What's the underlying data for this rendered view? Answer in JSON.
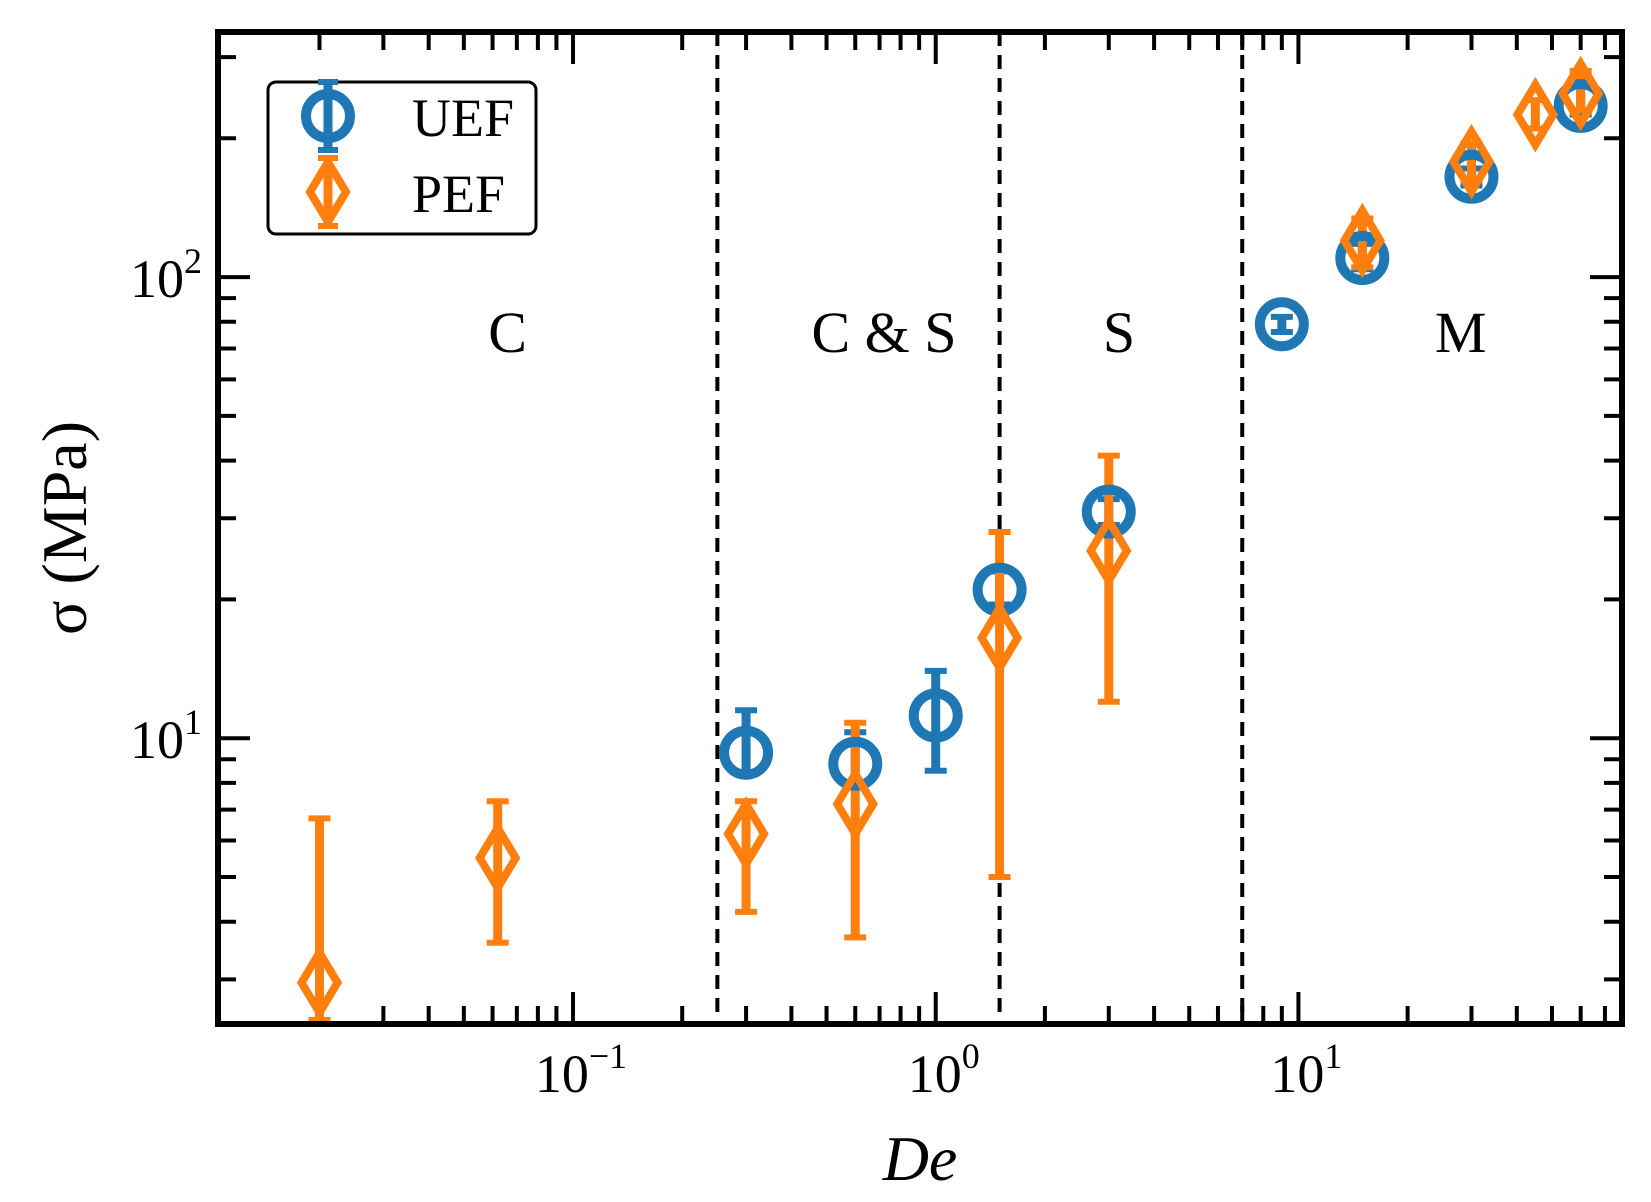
{
  "chart_data": {
    "type": "scatter",
    "x_scale": "log",
    "y_scale": "log",
    "xlabel": "De",
    "ylabel": "σ (MPa)",
    "xlim": [
      0.0105,
      78
    ],
    "ylim": [
      2.4,
      340
    ],
    "x_ticks": [
      {
        "mantissa": "10",
        "exponent": "−1",
        "value": 0.1
      },
      {
        "mantissa": "10",
        "exponent": "0",
        "value": 1
      },
      {
        "mantissa": "10",
        "exponent": "1",
        "value": 10
      }
    ],
    "y_ticks": [
      {
        "mantissa": "10",
        "exponent": "1",
        "value": 10
      },
      {
        "mantissa": "10",
        "exponent": "2",
        "value": 100
      }
    ],
    "vlines": [
      0.25,
      1.5,
      7.0
    ],
    "regions": [
      {
        "label": "C",
        "x": 0.066
      },
      {
        "label": "C & S",
        "x": 0.72
      },
      {
        "label": "S",
        "x": 3.2
      },
      {
        "label": "M",
        "x": 28
      }
    ],
    "legend": {
      "position": "top-left"
    },
    "series": [
      {
        "name": "UEF",
        "marker": "circle",
        "color": "#1f77b4",
        "points": [
          {
            "x": 0.3,
            "y": 9.3,
            "lo": 8.4,
            "hi": 11.5
          },
          {
            "x": 0.6,
            "y": 8.8,
            "lo": 8.0,
            "hi": 10.3
          },
          {
            "x": 1.0,
            "y": 11.2,
            "lo": 8.5,
            "hi": 14.0
          },
          {
            "x": 1.5,
            "y": 21.0,
            "lo": 19.5,
            "hi": 23.0
          },
          {
            "x": 3.0,
            "y": 31.0,
            "lo": 29.0,
            "hi": 33.0
          },
          {
            "x": 9.0,
            "y": 79.0,
            "lo": 76.0,
            "hi": 82.0
          },
          {
            "x": 15.0,
            "y": 110.0,
            "lo": 104.0,
            "hi": 118.0
          },
          {
            "x": 30.0,
            "y": 165.0,
            "lo": 158.0,
            "hi": 172.0
          },
          {
            "x": 60.0,
            "y": 235.0,
            "lo": 225.0,
            "hi": 262.0
          }
        ]
      },
      {
        "name": "PEF",
        "marker": "diamond",
        "color": "#ff7f0e",
        "points": [
          {
            "x": 0.02,
            "y": 2.95,
            "lo": 2.45,
            "hi": 6.7
          },
          {
            "x": 0.062,
            "y": 5.5,
            "lo": 3.6,
            "hi": 7.3
          },
          {
            "x": 0.3,
            "y": 6.2,
            "lo": 4.2,
            "hi": 7.3
          },
          {
            "x": 0.6,
            "y": 7.2,
            "lo": 3.7,
            "hi": 10.8
          },
          {
            "x": 1.5,
            "y": 16.5,
            "lo": 5.0,
            "hi": 28.0
          },
          {
            "x": 3.0,
            "y": 25.5,
            "lo": 12.0,
            "hi": 41.0
          },
          {
            "x": 15.0,
            "y": 120.0,
            "lo": 105.0,
            "hi": 134.0
          },
          {
            "x": 30.0,
            "y": 178.0,
            "lo": 162.0,
            "hi": 195.0
          },
          {
            "x": 45.0,
            "y": 225.0,
            "lo": 210.0,
            "hi": 242.0
          },
          {
            "x": 60.0,
            "y": 250.0,
            "lo": 230.0,
            "hi": 280.0
          }
        ]
      }
    ]
  }
}
